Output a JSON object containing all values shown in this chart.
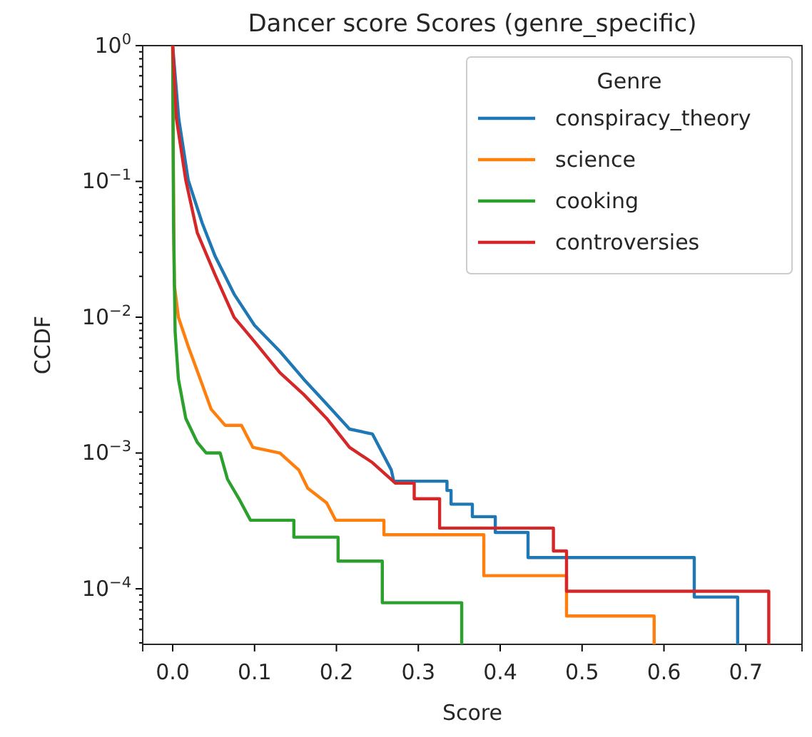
{
  "chart_data": {
    "type": "line",
    "title": "Dancer score Scores (genre_specific)",
    "xlabel": "Score",
    "ylabel": "CCDF",
    "legend_title": "Genre",
    "legend": "top right",
    "grid": false,
    "log": "y",
    "xlim": [
      -0.0366,
      0.7686
    ],
    "ylim": [
      3.9e-05,
      1
    ],
    "xticks": [
      {
        "value": 0,
        "label": "0.0"
      },
      {
        "value": 0.1,
        "label": "0.1"
      },
      {
        "value": 0.2,
        "label": "0.2"
      },
      {
        "value": 0.3,
        "label": "0.3"
      },
      {
        "value": 0.4,
        "label": "0.4"
      },
      {
        "value": 0.5,
        "label": "0.5"
      },
      {
        "value": 0.6,
        "label": "0.6"
      },
      {
        "value": 0.7,
        "label": "0.7"
      }
    ],
    "yticks": [
      {
        "value": 1,
        "label": "10$^{0}$"
      },
      {
        "value": 0.1,
        "label": "10$^{−1}$"
      },
      {
        "value": 0.01,
        "label": "10$^{−2}$"
      },
      {
        "value": 0.001,
        "label": "10$^{−3}$"
      },
      {
        "value": 0.0001,
        "label": "10$^{−4}$"
      },
      {
        "value": 0.9,
        "label": null
      },
      {
        "value": 0.8,
        "label": null
      },
      {
        "value": 0.7,
        "label": null
      },
      {
        "value": 0.6,
        "label": null
      },
      {
        "value": 0.5,
        "label": null
      },
      {
        "value": 0.4,
        "label": null
      },
      {
        "value": 0.3,
        "label": null
      },
      {
        "value": 0.2,
        "label": null
      },
      {
        "value": 0.09,
        "label": null
      },
      {
        "value": 0.08,
        "label": null
      },
      {
        "value": 0.07,
        "label": null
      },
      {
        "value": 0.06,
        "label": null
      },
      {
        "value": 0.05,
        "label": null
      },
      {
        "value": 0.04,
        "label": null
      },
      {
        "value": 0.03,
        "label": null
      },
      {
        "value": 0.02,
        "label": null
      },
      {
        "value": 0.009,
        "label": null
      },
      {
        "value": 0.008,
        "label": null
      },
      {
        "value": 0.007,
        "label": null
      },
      {
        "value": 0.006,
        "label": null
      },
      {
        "value": 0.005,
        "label": null
      },
      {
        "value": 0.004,
        "label": null
      },
      {
        "value": 0.003,
        "label": null
      },
      {
        "value": 0.002,
        "label": null
      },
      {
        "value": 0.0009,
        "label": null
      },
      {
        "value": 0.0008,
        "label": null
      },
      {
        "value": 0.0007,
        "label": null
      },
      {
        "value": 0.0006,
        "label": null
      },
      {
        "value": 0.0005,
        "label": null
      },
      {
        "value": 0.0004,
        "label": null
      },
      {
        "value": 0.0003,
        "label": null
      },
      {
        "value": 0.0002,
        "label": null
      },
      {
        "value": 9e-05,
        "label": null
      },
      {
        "value": 8e-05,
        "label": null
      },
      {
        "value": 7e-05,
        "label": null
      },
      {
        "value": 6e-05,
        "label": null
      },
      {
        "value": 5e-05,
        "label": null
      },
      {
        "value": 4e-05,
        "label": null
      }
    ],
    "series": [
      {
        "name": "conspiracy_theory",
        "color": "#1f77b4",
        "x": [
          0,
          0.0074,
          0.019,
          0.036,
          0.052,
          0.075,
          0.1,
          0.131,
          0.16,
          0.188,
          0.216,
          0.244,
          0.267,
          0.27,
          0.335,
          0.335,
          0.34,
          0.34,
          0.366,
          0.366,
          0.394,
          0.394,
          0.434,
          0.434,
          0.637,
          0.637,
          0.69,
          0.69
        ],
        "values": [
          1,
          0.29,
          0.102,
          0.0495,
          0.028,
          0.0148,
          0.0087,
          0.0056,
          0.0035,
          0.0023,
          0.0015,
          0.00138,
          0.00075,
          0.00062,
          0.00062,
          0.00053,
          0.00053,
          0.00042,
          0.00042,
          0.00034,
          0.00034,
          0.00026,
          0.00026,
          0.00017,
          0.00017,
          8.7e-05,
          8.7e-05,
          3.9e-05
        ]
      },
      {
        "name": "science",
        "color": "#ff7f0e",
        "x": [
          0,
          0.001,
          0.002,
          0.007,
          0.019,
          0.036,
          0.047,
          0.064,
          0.084,
          0.098,
          0.131,
          0.154,
          0.165,
          0.188,
          0.199,
          0.258,
          0.258,
          0.38,
          0.38,
          0.481,
          0.481,
          0.588,
          0.588
        ],
        "values": [
          1,
          0.1,
          0.0174,
          0.01,
          0.0061,
          0.0032,
          0.0021,
          0.0016,
          0.0016,
          0.0011,
          0.001,
          0.00075,
          0.00055,
          0.00043,
          0.00032,
          0.00032,
          0.00025,
          0.00025,
          0.000125,
          0.000125,
          6.3e-05,
          6.3e-05,
          3.9e-05
        ]
      },
      {
        "name": "cooking",
        "color": "#2ca02c",
        "x": [
          0,
          0.001,
          0.003,
          0.007,
          0.016,
          0.03,
          0.041,
          0.058,
          0.067,
          0.081,
          0.095,
          0.148,
          0.148,
          0.202,
          0.202,
          0.256,
          0.256,
          0.353,
          0.353
        ],
        "values": [
          1,
          0.05,
          0.0078,
          0.0035,
          0.0018,
          0.0012,
          0.001,
          0.001,
          0.00064,
          0.00046,
          0.00032,
          0.00032,
          0.00024,
          0.00024,
          0.00016,
          0.00016,
          7.9e-05,
          7.9e-05,
          3.9e-05
        ]
      },
      {
        "name": "controversies",
        "color": "#d62728",
        "x": [
          0,
          0.0046,
          0.016,
          0.03,
          0.052,
          0.075,
          0.1,
          0.131,
          0.16,
          0.188,
          0.216,
          0.244,
          0.272,
          0.295,
          0.295,
          0.326,
          0.326,
          0.465,
          0.465,
          0.481,
          0.481,
          0.728,
          0.728
        ],
        "values": [
          1,
          0.29,
          0.102,
          0.042,
          0.0204,
          0.01,
          0.0066,
          0.0039,
          0.0027,
          0.0018,
          0.0011,
          0.00085,
          0.0006,
          0.0006,
          0.00046,
          0.00046,
          0.00028,
          0.00028,
          0.00019,
          0.00019,
          9.6e-05,
          9.6e-05,
          3.9e-05
        ]
      }
    ]
  }
}
